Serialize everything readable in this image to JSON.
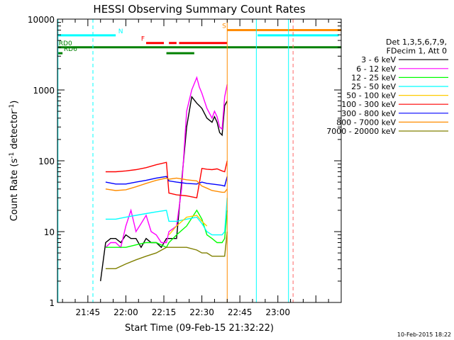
{
  "chart_data": {
    "type": "line",
    "title": "HESSI Observing Summary Count Rates",
    "xlabel": "Start Time (09-Feb-15 21:32:22)",
    "ylabel_main": "Count Rate (s",
    "ylabel_sup1": "-1",
    "ylabel_mid": " detector",
    "ylabel_sup2": "-1",
    "ylabel_end": ")",
    "y_scale": "log",
    "ylim": [
      1,
      10000
    ],
    "xlim_minutes_after_2130": [
      3,
      115
    ],
    "x_tick_labels": [
      "21:45",
      "22:00",
      "22:15",
      "22:30",
      "22:45",
      "23:00"
    ],
    "x_tick_minutes": [
      15,
      30,
      45,
      60,
      75,
      90
    ],
    "y_tick_labels": [
      "1",
      "10",
      "100",
      "1000",
      "10000"
    ],
    "y_tick_values": [
      1,
      10,
      100,
      1000,
      10000
    ],
    "legend_position": "right",
    "legend_header": [
      "Det 1,3,5,6,7,9,",
      "FDecim 1, Att 0"
    ],
    "series": [
      {
        "name": "3 - 6 keV",
        "color": "#000000",
        "x": [
          20,
          22,
          24,
          26,
          28,
          30,
          32,
          34,
          36,
          38,
          40,
          42,
          44,
          46,
          47,
          50,
          52,
          54,
          56,
          58,
          59,
          60,
          62,
          64,
          65,
          66,
          67,
          68,
          69,
          70
        ],
        "y": [
          2,
          7,
          8,
          8,
          7,
          9,
          8,
          8,
          6,
          8,
          7,
          7,
          6,
          8,
          8,
          8,
          50,
          300,
          800,
          650,
          600,
          550,
          400,
          350,
          420,
          350,
          250,
          230,
          600,
          700
        ]
      },
      {
        "name": "6 - 12 keV",
        "color": "#ff00ff",
        "x": [
          22,
          24,
          26,
          28,
          30,
          32,
          34,
          36,
          38,
          40,
          42,
          44,
          46,
          47,
          50,
          52,
          54,
          56,
          58,
          59,
          60,
          62,
          64,
          65,
          66,
          67,
          68,
          69,
          70
        ],
        "y": [
          6,
          7,
          7,
          6,
          12,
          20,
          10,
          13,
          17,
          10,
          9,
          7,
          7,
          10,
          12,
          40,
          500,
          1000,
          1500,
          1100,
          900,
          550,
          400,
          500,
          420,
          300,
          280,
          800,
          1200
        ]
      },
      {
        "name": "12 - 25 keV",
        "color": "#00ff00",
        "x": [
          22,
          26,
          30,
          34,
          38,
          42,
          46,
          47,
          50,
          54,
          58,
          60,
          62,
          64,
          66,
          68,
          69,
          70
        ],
        "y": [
          6,
          6,
          6,
          6.5,
          7,
          7,
          6,
          7,
          9,
          12,
          20,
          15,
          9,
          8,
          7,
          7,
          8,
          20
        ]
      },
      {
        "name": "25 - 50 keV",
        "color": "#00ffff",
        "x": [
          22,
          26,
          30,
          34,
          38,
          42,
          46,
          47,
          50,
          54,
          58,
          60,
          62,
          64,
          66,
          68,
          69,
          70
        ],
        "y": [
          15,
          15,
          16,
          17,
          18,
          19,
          20,
          14,
          14,
          15,
          16,
          13,
          10,
          9,
          9,
          9,
          10,
          30
        ]
      },
      {
        "name": "50 - 100 keV",
        "color": "#ffcc00",
        "x": [
          47,
          50,
          54,
          58,
          60,
          62
        ],
        "y": [
          9,
          12,
          16,
          17,
          14,
          12
        ]
      },
      {
        "name": "100 - 300 keV",
        "color": "#ff0000",
        "x": [
          22,
          26,
          30,
          34,
          38,
          42,
          46,
          47,
          50,
          54,
          58,
          60,
          62,
          64,
          66,
          68,
          69,
          70
        ],
        "y": [
          70,
          70,
          72,
          75,
          80,
          88,
          95,
          35,
          33,
          32,
          30,
          78,
          76,
          75,
          77,
          72,
          70,
          100
        ]
      },
      {
        "name": "300 - 800 keV",
        "color": "#0000ff",
        "x": [
          22,
          26,
          30,
          34,
          38,
          42,
          46,
          47,
          50,
          54,
          58,
          60,
          62,
          64,
          66,
          68,
          69,
          70
        ],
        "y": [
          50,
          47,
          47,
          50,
          53,
          57,
          60,
          52,
          50,
          48,
          47,
          50,
          48,
          47,
          46,
          45,
          44,
          60
        ]
      },
      {
        "name": "800 - 7000 keV",
        "color": "#ff8c00",
        "x": [
          22,
          26,
          30,
          34,
          38,
          42,
          46,
          47,
          50,
          54,
          58,
          60,
          62,
          64,
          66,
          68,
          69,
          70
        ],
        "y": [
          40,
          38,
          39,
          43,
          48,
          53,
          57,
          55,
          57,
          54,
          52,
          44,
          41,
          38,
          37,
          36,
          36,
          40
        ]
      },
      {
        "name": "7000 - 20000 keV",
        "color": "#808000",
        "x": [
          22,
          26,
          30,
          34,
          38,
          42,
          46,
          47,
          50,
          54,
          58,
          60,
          62,
          64,
          66,
          68,
          69,
          70
        ],
        "y": [
          3,
          3,
          3.5,
          4,
          4.5,
          5,
          6,
          6,
          6,
          6,
          5.5,
          5,
          5,
          4.5,
          4.5,
          4.5,
          4.5,
          10
        ]
      }
    ],
    "state_bars": [
      {
        "label": "N",
        "color": "#00ffff",
        "level": 5900,
        "segments": [
          [
            3,
            26
          ]
        ],
        "label_at": 27
      },
      {
        "label": "F",
        "color": "#ff0000",
        "level": 4600,
        "segments": [
          [
            38,
            45
          ],
          [
            47,
            50
          ],
          [
            51,
            70
          ]
        ],
        "label_at": 36
      },
      {
        "label": "S",
        "color": "#ff8c00",
        "level": 7000,
        "segments": [
          [
            70,
            115
          ]
        ],
        "label_at": 68
      },
      {
        "label": "RD0",
        "color": "#008000",
        "level": 4000,
        "segments": [
          [
            3,
            115
          ]
        ],
        "label_at": 3.5
      },
      {
        "label": "RD6",
        "color": "#008000",
        "level": 3300,
        "segments": [
          [
            3,
            5
          ],
          [
            46,
            57
          ]
        ],
        "label_at": 5.5
      },
      {
        "label": "",
        "color": "#00ffff",
        "level": 5900,
        "segments": [
          [
            82,
            114
          ]
        ],
        "label_at": null
      }
    ],
    "vertical_lines": [
      {
        "x": 3.2,
        "color": "#00ffff",
        "style": "solid"
      },
      {
        "x": 17,
        "color": "#00ffff",
        "style": "dashed"
      },
      {
        "x": 70,
        "color": "#ff8c00",
        "style": "solid"
      },
      {
        "x": 81.5,
        "color": "#00ffff",
        "style": "solid"
      },
      {
        "x": 94.2,
        "color": "#00ffff",
        "style": "solid"
      },
      {
        "x": 96,
        "color": "#ff6666",
        "style": "dashed"
      }
    ],
    "timestamp": "10-Feb-2015 18:22"
  }
}
